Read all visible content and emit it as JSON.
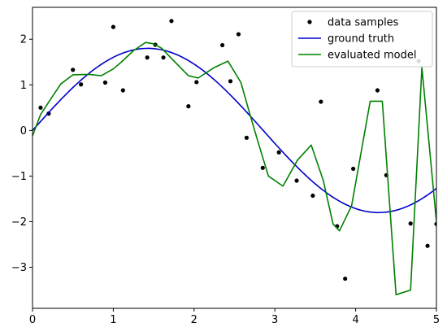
{
  "chart_data": {
    "type": "line",
    "title": "",
    "xlabel": "",
    "ylabel": "",
    "xlim": [
      0,
      5
    ],
    "ylim": [
      -3.9,
      2.7
    ],
    "xticks": [
      0,
      1,
      2,
      3,
      4,
      5
    ],
    "yticks": [
      -3,
      -2,
      -1,
      0,
      1,
      2
    ],
    "grid": false,
    "legend_position": "top-right",
    "series": [
      {
        "name": "data samples",
        "kind": "scatter",
        "color": "#000000",
        "x": [
          0.1,
          0.2,
          0.5,
          0.6,
          0.9,
          1.0,
          1.12,
          1.42,
          1.52,
          1.62,
          1.72,
          1.93,
          2.03,
          2.35,
          2.45,
          2.55,
          2.65,
          2.85,
          3.05,
          3.27,
          3.47,
          3.57,
          3.77,
          3.87,
          3.97,
          4.27,
          4.38,
          4.68,
          4.78,
          4.89,
          5.0
        ],
        "y": [
          0.5,
          0.37,
          1.33,
          1.01,
          1.05,
          2.27,
          0.88,
          1.6,
          1.88,
          1.6,
          2.4,
          0.53,
          1.06,
          1.87,
          1.08,
          2.11,
          -0.16,
          -0.82,
          -0.48,
          -1.1,
          -1.43,
          0.63,
          -2.1,
          -3.25,
          -0.84,
          0.88,
          -0.98,
          -2.04,
          1.52,
          -2.53,
          -2.05
        ]
      },
      {
        "name": "ground truth",
        "kind": "line",
        "color": "#0000cc",
        "function": "1.8*sin(1.1*x)"
      },
      {
        "name": "evaluated model",
        "kind": "line",
        "color": "#008000",
        "x": [
          0.0,
          0.1,
          0.2,
          0.35,
          0.5,
          0.7,
          0.85,
          1.0,
          1.1,
          1.25,
          1.4,
          1.5,
          1.6,
          1.72,
          1.93,
          2.05,
          2.25,
          2.42,
          2.58,
          2.7,
          2.8,
          2.92,
          3.1,
          3.28,
          3.45,
          3.6,
          3.72,
          3.8,
          3.95,
          4.18,
          4.33,
          4.5,
          4.68,
          4.82,
          5.0
        ],
        "y": [
          -0.12,
          0.35,
          0.62,
          1.02,
          1.22,
          1.23,
          1.2,
          1.35,
          1.5,
          1.75,
          1.93,
          1.9,
          1.8,
          1.58,
          1.2,
          1.15,
          1.38,
          1.52,
          1.05,
          0.3,
          -0.3,
          -1.0,
          -1.22,
          -0.65,
          -0.32,
          -1.1,
          -2.05,
          -2.2,
          -1.65,
          0.64,
          0.64,
          -3.6,
          -3.5,
          1.38,
          -2.0
        ]
      }
    ]
  }
}
